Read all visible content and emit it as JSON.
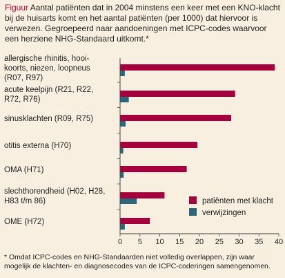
{
  "caption": {
    "lead": "Figuur",
    "text": "Aantal patiënten dat in 2004 minstens een keer met een KNO-klacht bij de huisarts komt en het aantal patiënten (per 1000) dat hiervoor is verwezen. Gegroepeerd naar aandoeningen met ICPC-codes waarvoor een herziene NHG-Standaard uitkomt.*"
  },
  "footnote": "* Omdat ICPC-codes en NHG-Standaarden niet volledig overlappen, zijn waar mogelijk de klachten- en diagnosecodes van de ICPC-coderingen samengenomen.",
  "colors": {
    "complaints": "#a5003e",
    "referrals": "#2c6678",
    "accent": "#a5003e",
    "background": "#f9efe1"
  },
  "chart_data": {
    "type": "bar",
    "orientation": "horizontal",
    "categories": [
      [
        "allergische rhinitis, hooi-",
        "koorts, niezen, loopneus",
        "(R07, R97)"
      ],
      [
        "acute keelpijn (R21, R22,",
        "R72, R76)"
      ],
      [
        "sinusklachten (R09, R75)"
      ],
      [
        "otitis externa (H70)"
      ],
      [
        "OMA (H71)"
      ],
      [
        "slechthorendheid (H02, H28,",
        "H83 t/m 86)"
      ],
      [
        "OME (H72)"
      ]
    ],
    "series": [
      {
        "name": "patiënten met klacht",
        "color": "#a5003e",
        "values": [
          39,
          29,
          28,
          19.5,
          16.8,
          11.2,
          7.5
        ]
      },
      {
        "name": "verwijzingen",
        "color": "#2c6678",
        "values": [
          1.2,
          2.2,
          1.4,
          0.8,
          0.9,
          4.2,
          1.2
        ]
      }
    ],
    "xlim": [
      0,
      40
    ],
    "xticks": [
      0,
      5,
      10,
      15,
      20,
      25,
      30,
      35,
      40
    ],
    "legend_position": "bottom-right"
  }
}
